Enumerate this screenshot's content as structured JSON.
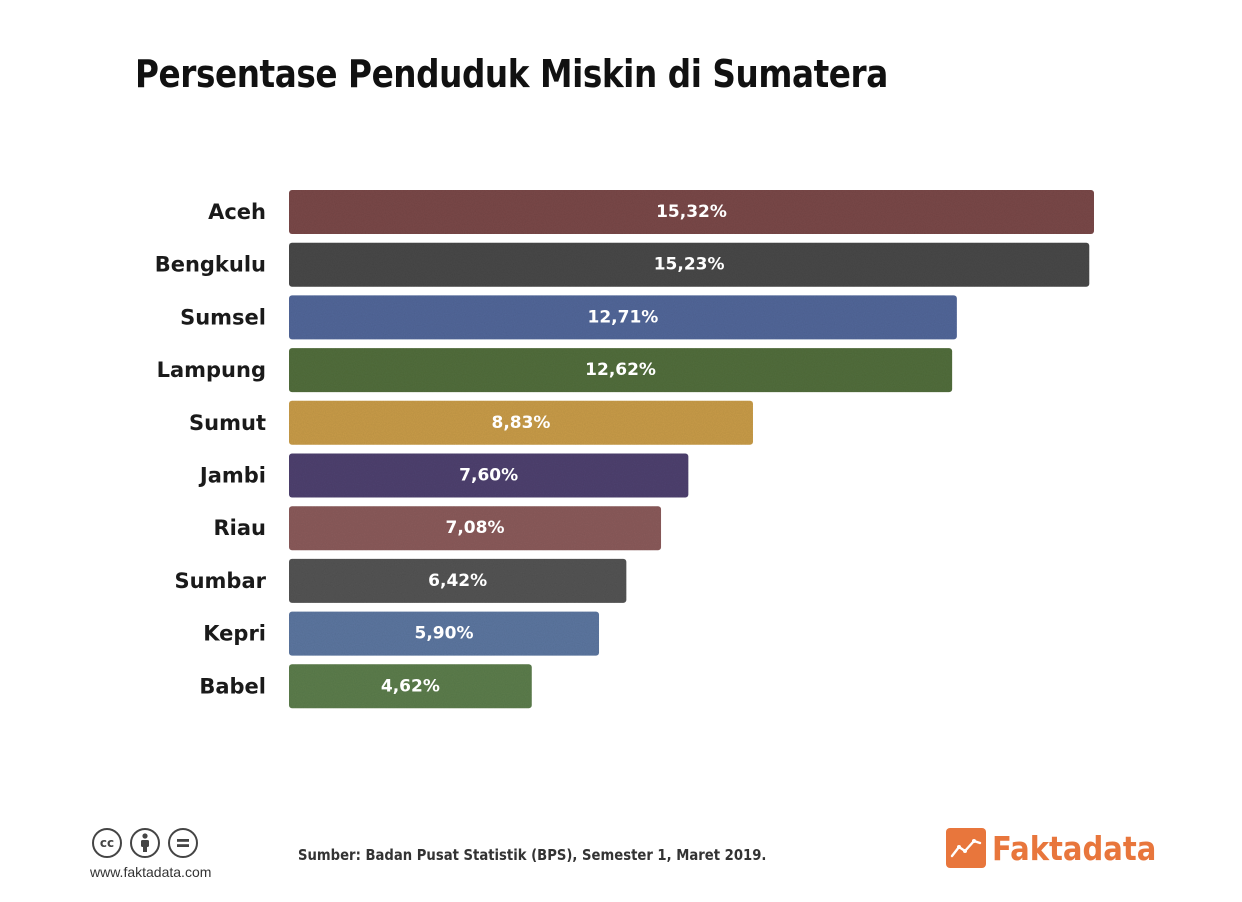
{
  "title": "Persentase Penduduk Miskin di Sumatera",
  "chart_data": {
    "type": "bar",
    "orientation": "horizontal",
    "title": "Persentase Penduduk Miskin di Sumatera",
    "xlabel": "",
    "ylabel": "",
    "unit": "%",
    "grid": false,
    "categories": [
      "Aceh",
      "Bengkulu",
      "Sumsel",
      "Lampung",
      "Sumut",
      "Jambi",
      "Riau",
      "Sumbar",
      "Kepri",
      "Babel"
    ],
    "values": [
      15.32,
      15.23,
      12.71,
      12.62,
      8.83,
      7.6,
      7.08,
      6.42,
      5.9,
      4.62
    ],
    "value_labels": [
      "15,32%",
      "15,23%",
      "12,71%",
      "12,62%",
      "8,83%",
      "7,60%",
      "7,08%",
      "6,42%",
      "5,90%",
      "4,62%"
    ],
    "colors": [
      "#7a4a49",
      "#4a4a4a",
      "#52689a",
      "#536e3e",
      "#c99c48",
      "#4f4370",
      "#8b5c5c",
      "#555555",
      "#5d77a0",
      "#5d7e4d"
    ]
  },
  "footer": {
    "license_icons": [
      "creative-commons-icon",
      "attribution-icon",
      "no-derivatives-icon"
    ],
    "cc_text": "cc",
    "website": "www.faktadata.com",
    "source": "Sumber: Badan Pusat Statistik (BPS), Semester 1, Maret 2019.",
    "brand": "Faktadata",
    "brand_color": "#e8763c"
  }
}
